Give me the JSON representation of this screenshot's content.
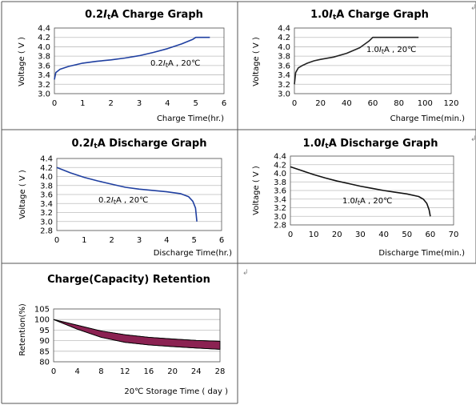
{
  "chart_data": [
    {
      "type": "line",
      "title": "0.2ItA Charge Graph",
      "title_parts": [
        "0.2",
        "I",
        "t",
        "A Charge Graph"
      ],
      "xlabel": "Charge Time(hr.)",
      "ylabel": "Voltage ( V )",
      "xlim": [
        0,
        6
      ],
      "ylim": [
        3.0,
        4.4
      ],
      "xticks": [
        0,
        1,
        2,
        3,
        4,
        5,
        6
      ],
      "yticks": [
        3.0,
        3.2,
        3.4,
        3.6,
        3.8,
        4.0,
        4.2,
        4.4
      ],
      "ytick_labels": [
        "3.0",
        "3.2",
        "3.4",
        "3.6",
        "3.8",
        "4.0",
        "4.2",
        "4.4"
      ],
      "annotation": "0.2ItA , 20℃",
      "annotation_parts": [
        "0.2",
        "I",
        "t",
        "A , 20℃"
      ],
      "color": "#1f3fa0",
      "series": [
        {
          "x": [
            0,
            0.05,
            0.2,
            0.5,
            1,
            1.5,
            2,
            2.5,
            3,
            3.5,
            4,
            4.5,
            4.9,
            5.0,
            5.5
          ],
          "y": [
            3.3,
            3.45,
            3.52,
            3.58,
            3.65,
            3.69,
            3.72,
            3.76,
            3.81,
            3.88,
            3.96,
            4.06,
            4.16,
            4.2,
            4.2
          ]
        }
      ]
    },
    {
      "type": "line",
      "title": "1.0ItA Charge Graph",
      "title_parts": [
        "1.0",
        "I",
        "t",
        "A Charge Graph"
      ],
      "xlabel": "Charge Time(min.)",
      "ylabel": "Voltage ( V )",
      "xlim": [
        0,
        120
      ],
      "ylim": [
        3.0,
        4.4
      ],
      "xticks": [
        0,
        20,
        40,
        60,
        80,
        100,
        120
      ],
      "yticks": [
        3.0,
        3.2,
        3.4,
        3.6,
        3.8,
        4.0,
        4.2,
        4.4
      ],
      "ytick_labels": [
        "3.0",
        "3.2",
        "3.4",
        "3.6",
        "3.8",
        "4.0",
        "4.2",
        "4.4"
      ],
      "annotation": "1.0ItA , 20℃",
      "annotation_parts": [
        "1.0",
        "I",
        "t",
        "A , 20℃"
      ],
      "color": "#222222",
      "series": [
        {
          "x": [
            0,
            1,
            3,
            6,
            10,
            15,
            20,
            30,
            40,
            50,
            57,
            60,
            95
          ],
          "y": [
            3.2,
            3.45,
            3.55,
            3.6,
            3.65,
            3.7,
            3.73,
            3.78,
            3.86,
            3.98,
            4.12,
            4.2,
            4.2
          ]
        }
      ]
    },
    {
      "type": "line",
      "title": "0.2ItA Discharge Graph",
      "title_parts": [
        "0.2",
        "I",
        "t",
        "A Discharge Graph"
      ],
      "xlabel": "Discharge Time(hr.)",
      "ylabel": "Voltage ( V )",
      "xlim": [
        0,
        6
      ],
      "ylim": [
        2.8,
        4.4
      ],
      "xticks": [
        0,
        1,
        2,
        3,
        4,
        5,
        6
      ],
      "yticks": [
        2.8,
        3.0,
        3.2,
        3.4,
        3.6,
        3.8,
        4.0,
        4.2,
        4.4
      ],
      "ytick_labels": [
        "2.8",
        "3.0",
        "3.2",
        "3.4",
        "3.6",
        "3.8",
        "4.0",
        "4.2",
        "4.4"
      ],
      "annotation": "0.2ItA , 20℃",
      "annotation_parts": [
        "0.2",
        "I",
        "t",
        "A , 20℃"
      ],
      "color": "#1f3fa0",
      "series": [
        {
          "x": [
            0,
            0.5,
            1,
            1.5,
            2,
            2.5,
            3,
            3.5,
            4,
            4.5,
            4.8,
            4.95,
            5.05,
            5.1
          ],
          "y": [
            4.2,
            4.08,
            3.98,
            3.9,
            3.83,
            3.76,
            3.72,
            3.69,
            3.66,
            3.62,
            3.55,
            3.45,
            3.3,
            3.0
          ]
        }
      ]
    },
    {
      "type": "line",
      "title": "1.0ItA Discharge Graph",
      "title_parts": [
        "1.0",
        "I",
        "t",
        "A Discharge Graph"
      ],
      "xlabel": "Discharge Time(min.)",
      "ylabel": "Voltage ( V )",
      "xlim": [
        0,
        70
      ],
      "ylim": [
        2.8,
        4.4
      ],
      "xticks": [
        0,
        10,
        20,
        30,
        40,
        50,
        60,
        70
      ],
      "yticks": [
        2.8,
        3.0,
        3.2,
        3.4,
        3.6,
        3.8,
        4.0,
        4.2,
        4.4
      ],
      "ytick_labels": [
        "2.8",
        "3.0",
        "3.2",
        "3.4",
        "3.6",
        "3.8",
        "4.0",
        "4.2",
        "4.4"
      ],
      "annotation": "1.0ItA , 20℃",
      "annotation_parts": [
        "1.0",
        "I",
        "t",
        "A , 20℃"
      ],
      "color": "#111111",
      "series": [
        {
          "x": [
            0,
            5,
            10,
            15,
            20,
            25,
            30,
            35,
            40,
            45,
            50,
            55,
            57,
            58.5,
            59.5,
            60
          ],
          "y": [
            4.15,
            4.06,
            3.97,
            3.89,
            3.82,
            3.76,
            3.7,
            3.65,
            3.6,
            3.56,
            3.52,
            3.46,
            3.4,
            3.3,
            3.15,
            3.0
          ]
        }
      ]
    },
    {
      "type": "area",
      "title": "Charge(Capacity) Retention",
      "xlabel": "20℃ Storage Time ( day )",
      "ylabel": "Retention(%)",
      "xlim": [
        0,
        28
      ],
      "ylim": [
        80,
        105
      ],
      "xticks": [
        0,
        4,
        8,
        12,
        16,
        20,
        24,
        28
      ],
      "yticks": [
        80,
        85,
        90,
        95,
        100,
        105
      ],
      "ytick_labels": [
        "80",
        "85",
        "90",
        "95",
        "100",
        "105"
      ],
      "fill": "#8b2252",
      "series": [
        {
          "x": [
            0,
            4,
            8,
            12,
            16,
            20,
            24,
            28
          ],
          "y": [
            100,
            97.3,
            94.6,
            92.8,
            91.6,
            90.8,
            90.1,
            89.7
          ]
        },
        {
          "x": [
            0,
            4,
            8,
            12,
            16,
            20,
            24,
            28
          ],
          "y": [
            100,
            95.4,
            91.6,
            89.2,
            88.0,
            87.2,
            86.5,
            85.9
          ]
        }
      ]
    }
  ],
  "page": {
    "return_marks": [
      "↲",
      "↲",
      "↲"
    ],
    "border_color": "#555555"
  }
}
